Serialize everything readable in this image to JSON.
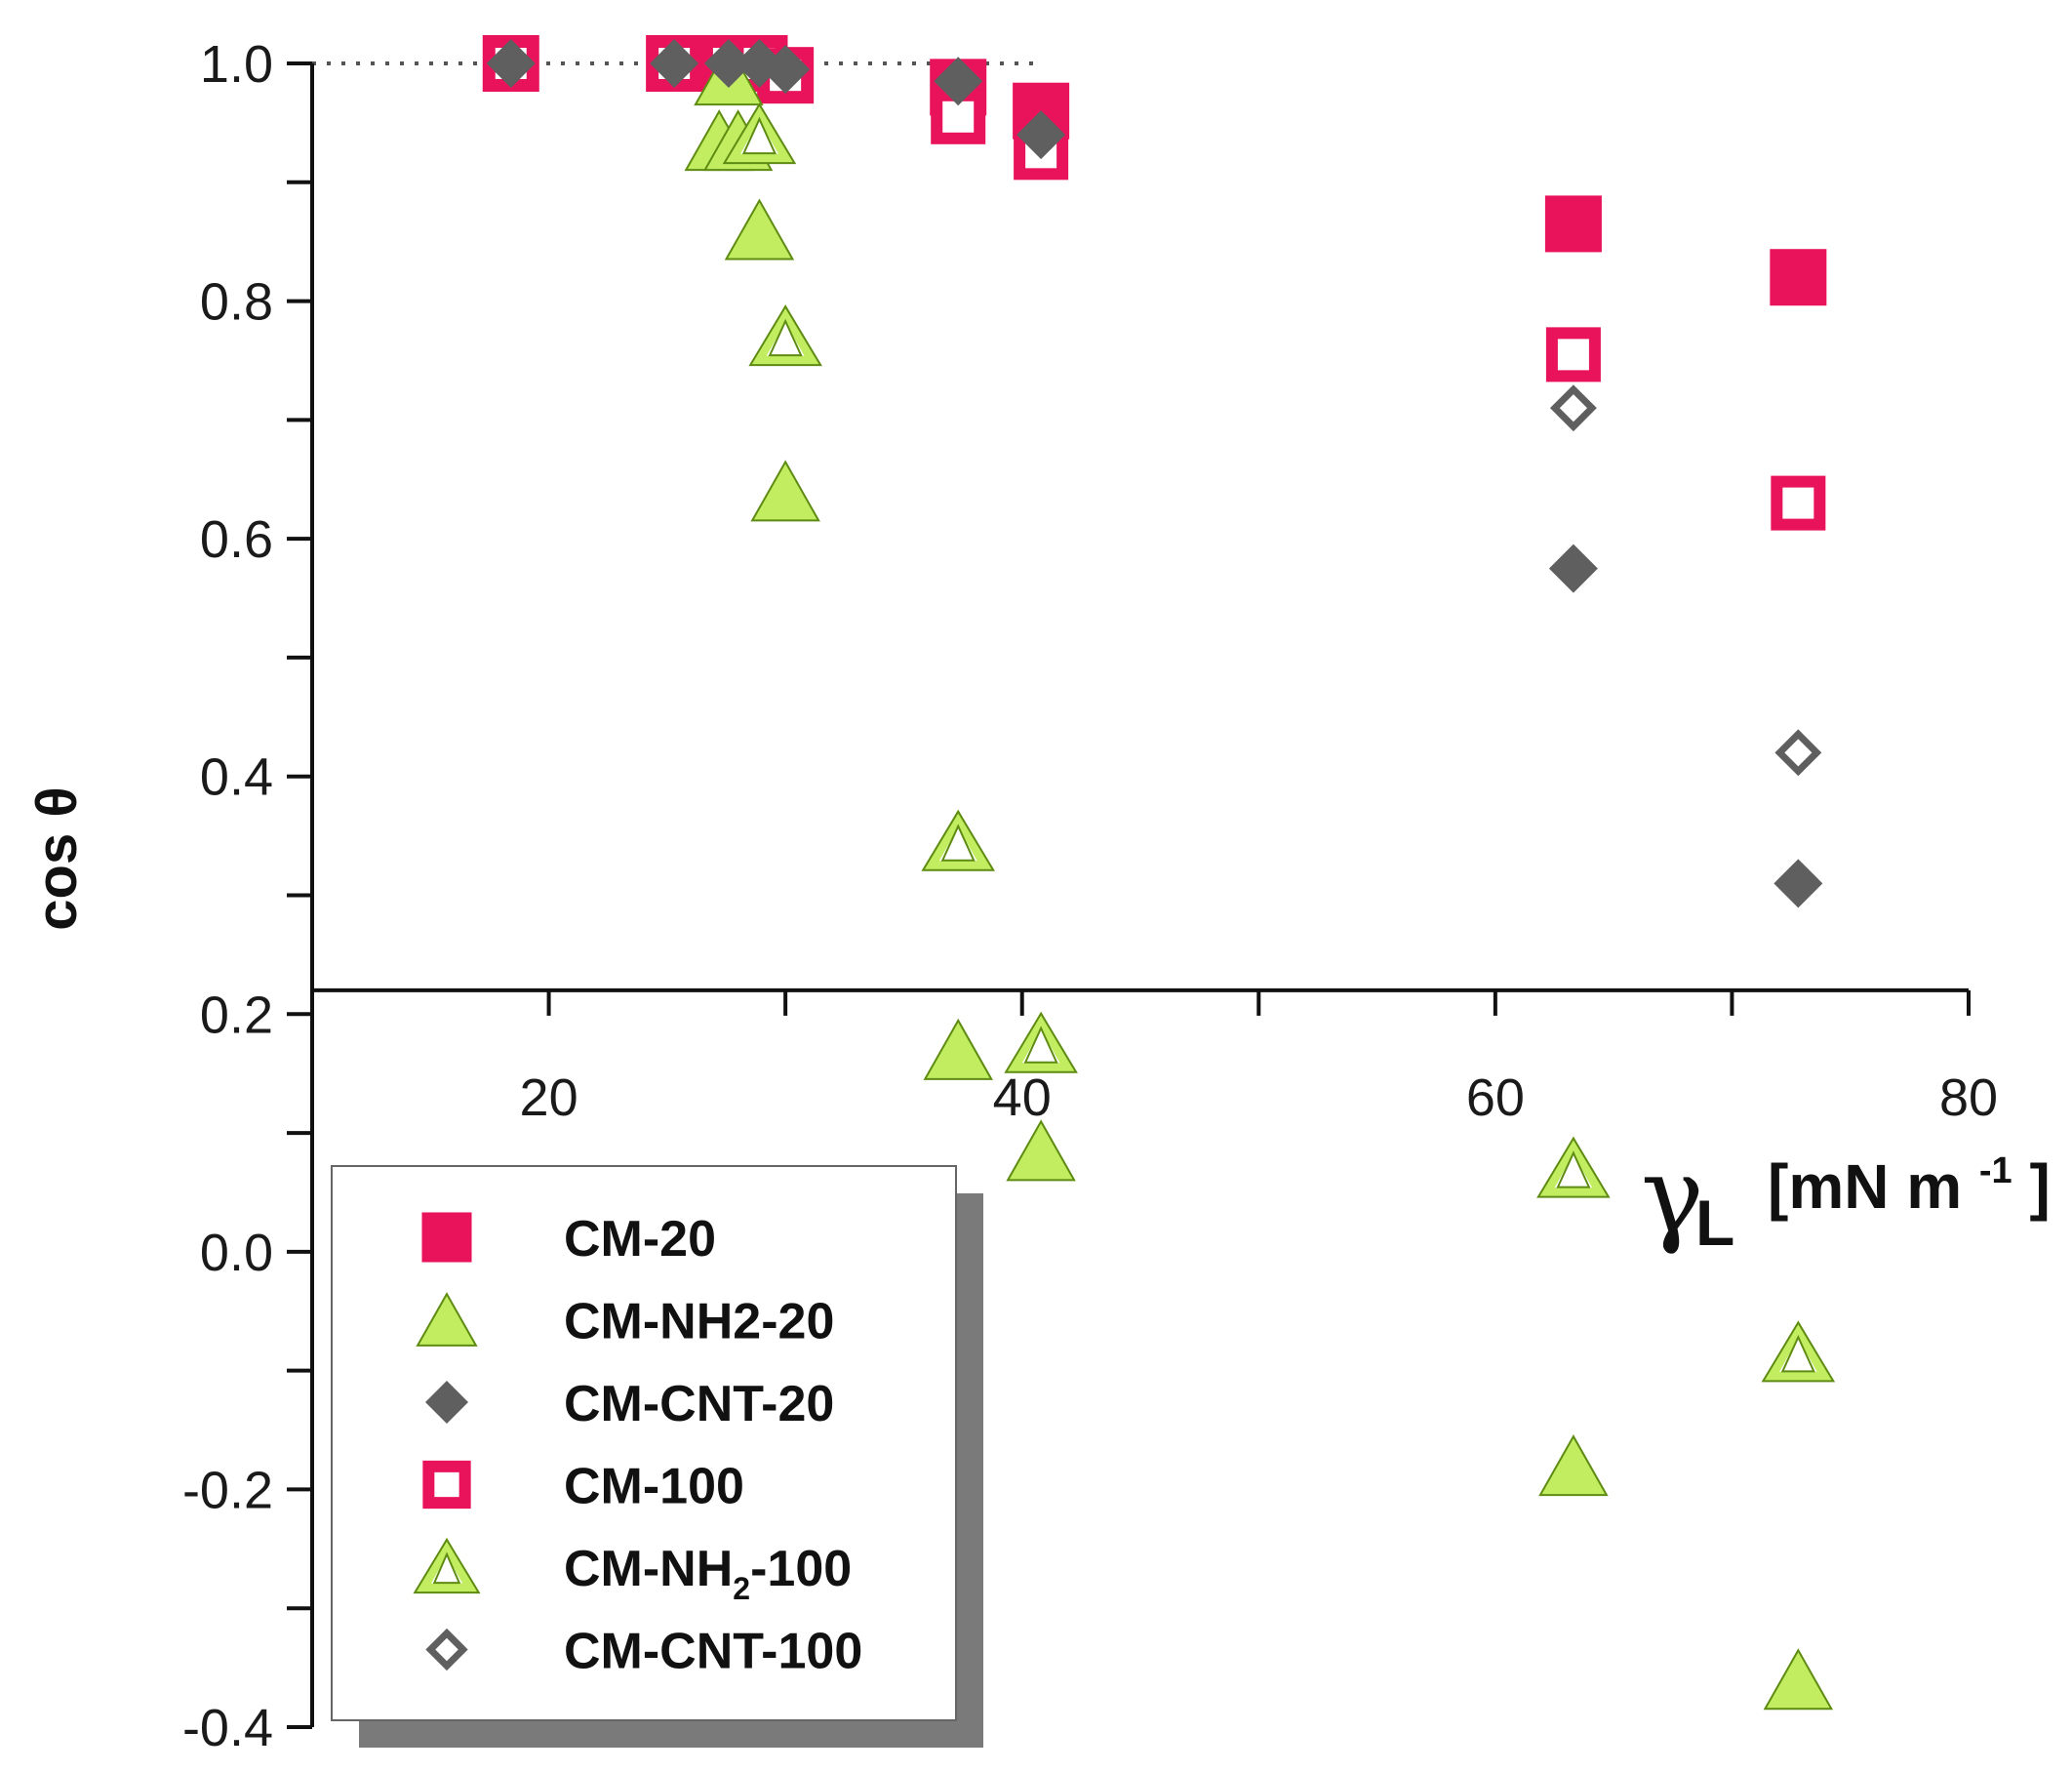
{
  "chart_data": {
    "type": "scatter",
    "title": "",
    "xlabel": "γL [mN m-1]",
    "xlabel_parts": {
      "symbol": "γ",
      "subscript": "L",
      "unit_open": "[mN m",
      "unit_exp": "-1",
      "unit_close": "]"
    },
    "ylabel": "cos θ",
    "xlim": [
      10,
      80
    ],
    "ylim": [
      -0.4,
      1.0
    ],
    "x_axis_crosses_y": 0.22,
    "x_ticks": [
      10,
      20,
      30,
      40,
      50,
      60,
      70,
      80
    ],
    "x_tick_labels": [
      {
        "value": 20,
        "label": "20"
      },
      {
        "value": 40,
        "label": "40"
      },
      {
        "value": 60,
        "label": "60"
      },
      {
        "value": 80,
        "label": "80"
      }
    ],
    "y_ticks": [
      -0.4,
      -0.3,
      -0.2,
      -0.1,
      0.0,
      0.1,
      0.2,
      0.3,
      0.4,
      0.5,
      0.6,
      0.7,
      0.8,
      0.9,
      1.0
    ],
    "y_tick_labels": [
      {
        "value": 1.0,
        "label": "1.0"
      },
      {
        "value": 0.8,
        "label": "0.8"
      },
      {
        "value": 0.6,
        "label": "0.6"
      },
      {
        "value": 0.4,
        "label": "0.4"
      },
      {
        "value": 0.2,
        "label": "0.2"
      },
      {
        "value": 0.0,
        "label": "0.0"
      },
      {
        "value": -0.2,
        "label": "-0.2"
      },
      {
        "value": -0.4,
        "label": "-0.4"
      }
    ],
    "reference_line": {
      "y": 1.0,
      "x_range": [
        10,
        40.5
      ],
      "style": "dotted"
    },
    "legend_position": "bottom-left",
    "colors": {
      "magenta": "#e8135a",
      "lime": "#c2ed61",
      "lime_edge": "#5e8c12",
      "gray": "#5f5f5f",
      "axis": "#111111"
    },
    "series": [
      {
        "name": "CM-20",
        "label": "CM-20",
        "marker": "square-filled",
        "x": [
          18.4,
          25.3,
          27.6,
          28.9,
          30.0,
          37.3,
          40.8,
          63.3,
          72.8
        ],
        "y": [
          1.0,
          1.0,
          1.0,
          1.0,
          0.99,
          0.98,
          0.96,
          0.865,
          0.82
        ]
      },
      {
        "name": "CM-NH2-20",
        "label": "CM-NH2-20",
        "marker": "triangle-filled",
        "x": [
          27.6,
          27.2,
          28.0,
          28.9,
          30.0,
          37.3,
          40.8,
          63.3,
          72.8
        ],
        "y": [
          0.99,
          0.935,
          0.935,
          0.86,
          0.64,
          0.17,
          0.085,
          -0.18,
          -0.36
        ]
      },
      {
        "name": "CM-CNT-20",
        "label": "CM-CNT-20",
        "marker": "diamond-filled",
        "x": [
          18.4,
          25.3,
          27.6,
          28.9,
          30.0,
          37.3,
          40.8,
          63.3,
          72.8
        ],
        "y": [
          1.0,
          1.0,
          1.0,
          1.0,
          0.995,
          0.985,
          0.94,
          0.575,
          0.31
        ]
      },
      {
        "name": "CM-100",
        "label": "CM-100",
        "marker": "square-open",
        "x": [
          18.4,
          25.3,
          27.6,
          28.9,
          30.0,
          37.3,
          40.8,
          63.3,
          72.8
        ],
        "y": [
          1.0,
          1.0,
          1.0,
          1.0,
          0.99,
          0.955,
          0.925,
          0.755,
          0.63
        ]
      },
      {
        "name": "CM-NH2-100",
        "label_main": "CM-NH",
        "label_sub": "2",
        "label_tail": "-100",
        "marker": "triangle-open",
        "x": [
          28.9,
          30.0,
          37.3,
          40.8,
          63.3,
          72.8
        ],
        "y": [
          0.94,
          0.77,
          0.345,
          0.175,
          0.07,
          -0.085
        ]
      },
      {
        "name": "CM-CNT-100",
        "label": "CM-CNT-100",
        "marker": "diamond-open",
        "x": [
          18.4,
          63.3,
          72.8
        ],
        "y": [
          1.0,
          0.71,
          0.42
        ]
      }
    ]
  }
}
